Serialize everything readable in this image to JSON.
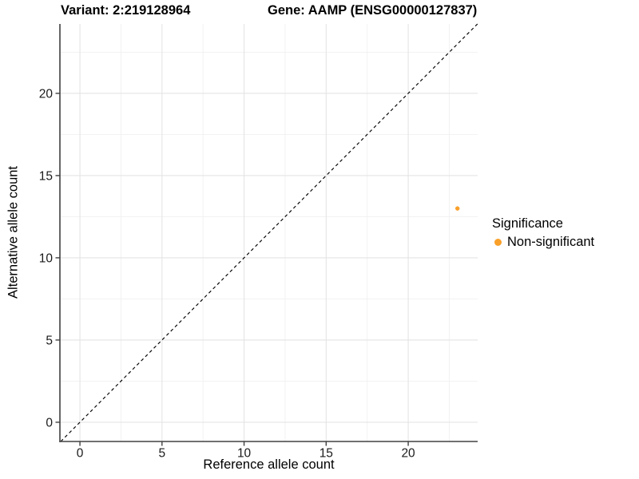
{
  "chart_data": {
    "type": "scatter",
    "title_left": "Variant: 2:219128964",
    "title_right": "Gene: AAMP (ENSG00000127837)",
    "xlabel": "Reference allele count",
    "ylabel": "Alternative allele count",
    "x_ticks": [
      0,
      5,
      10,
      15,
      20
    ],
    "y_ticks": [
      0,
      5,
      10,
      15,
      20
    ],
    "x_minor_gridlines": [
      2.5,
      7.5,
      12.5,
      17.5,
      22.5
    ],
    "y_minor_gridlines": [
      2.5,
      7.5,
      12.5,
      17.5,
      22.5
    ],
    "xlim": [
      -1.22,
      24.23
    ],
    "ylim": [
      -1.17,
      24.22
    ],
    "grid": true,
    "identity_line": {
      "slope": 1,
      "intercept": 0,
      "style": "dashed",
      "color": "#000000"
    },
    "series": [
      {
        "name": "Non-significant",
        "color": "#F9A02A",
        "points": [
          {
            "x": 23,
            "y": 13
          }
        ]
      }
    ],
    "legend": {
      "title": "Significance",
      "position": "right",
      "items": [
        {
          "label": "Non-significant",
          "color": "#F9A02A"
        }
      ]
    },
    "colors": {
      "point_orange": "#F9A02A",
      "grid_major": "#E4E4E4",
      "grid_minor": "#F0F0F0",
      "axis_line": "#404040",
      "text": "#1A1A1A"
    }
  }
}
